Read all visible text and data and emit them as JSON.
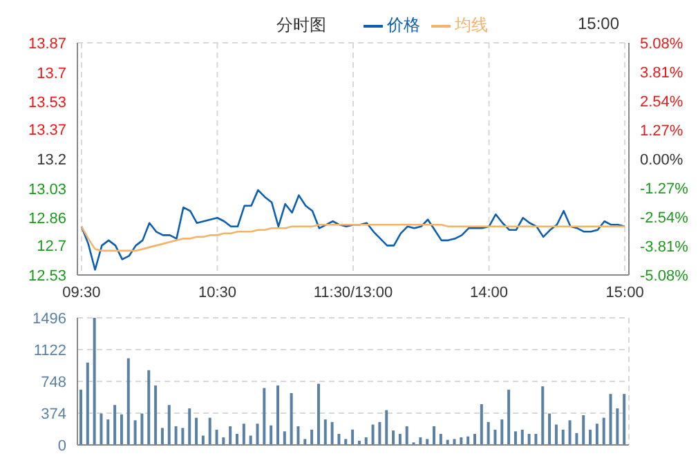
{
  "chart_data": [
    {
      "type": "line",
      "title": "分时图",
      "annotations": [
        "15:00"
      ],
      "legend": "top",
      "grid": true,
      "categories": [
        "09:30",
        null,
        null,
        null,
        null,
        null,
        null,
        null,
        null,
        null,
        null,
        null,
        null,
        null,
        null,
        null,
        null,
        null,
        null,
        null,
        "10:30",
        null,
        null,
        null,
        null,
        null,
        null,
        null,
        null,
        null,
        null,
        null,
        null,
        null,
        null,
        null,
        null,
        null,
        null,
        null,
        "11:30/13:00",
        null,
        null,
        null,
        null,
        null,
        null,
        null,
        null,
        null,
        null,
        null,
        null,
        null,
        null,
        null,
        null,
        null,
        null,
        null,
        "14:00",
        null,
        null,
        null,
        null,
        null,
        null,
        null,
        null,
        null,
        null,
        null,
        null,
        null,
        null,
        null,
        null,
        null,
        null,
        null,
        "15:00"
      ],
      "ylim": [
        12.53,
        13.87
      ],
      "yticks": [
        12.53,
        12.7,
        12.86,
        13.03,
        13.2,
        13.37,
        13.53,
        13.7,
        13.87
      ],
      "y2lim": [
        -5.08,
        5.08
      ],
      "y2ticks": [
        {
          "value": -5.08,
          "label": "-5.08%"
        },
        {
          "value": -3.81,
          "label": "-3.81%"
        },
        {
          "value": -2.54,
          "label": "-2.54%"
        },
        {
          "value": -1.27,
          "label": "-1.27%"
        },
        {
          "value": 0,
          "label": "0.00%"
        },
        {
          "value": 1.27,
          "label": "1.27%"
        },
        {
          "value": 2.54,
          "label": "2.54%"
        },
        {
          "value": 3.81,
          "label": "3.81%"
        },
        {
          "value": 5.08,
          "label": "5.08%"
        }
      ],
      "series": [
        {
          "name": "价格",
          "color": "#0c5fb0",
          "values": [
            12.81,
            12.71,
            12.56,
            12.7,
            12.73,
            12.7,
            12.62,
            12.64,
            12.7,
            12.73,
            12.83,
            12.78,
            12.76,
            12.76,
            12.74,
            12.92,
            12.9,
            12.83,
            12.84,
            12.85,
            12.86,
            12.84,
            12.81,
            12.81,
            12.93,
            12.93,
            13.02,
            12.98,
            12.95,
            12.81,
            12.94,
            12.89,
            12.99,
            12.93,
            12.9,
            12.8,
            12.82,
            12.84,
            12.82,
            12.81,
            12.82,
            12.82,
            12.83,
            12.78,
            12.74,
            12.7,
            12.7,
            12.77,
            12.81,
            12.8,
            12.81,
            12.85,
            12.79,
            12.73,
            12.73,
            12.74,
            12.76,
            12.8,
            12.8,
            12.8,
            12.81,
            12.88,
            12.83,
            12.79,
            12.79,
            12.86,
            12.83,
            12.81,
            12.75,
            12.79,
            12.82,
            12.9,
            12.81,
            12.8,
            12.78,
            12.78,
            12.79,
            12.84,
            12.82,
            12.82,
            12.81
          ]
        },
        {
          "name": "均线",
          "color": "#f4b36a",
          "values": [
            12.81,
            12.74,
            12.68,
            12.67,
            12.67,
            12.67,
            12.67,
            12.67,
            12.67,
            12.68,
            12.69,
            12.7,
            12.71,
            12.72,
            12.73,
            12.74,
            12.74,
            12.75,
            12.75,
            12.76,
            12.76,
            12.77,
            12.77,
            12.78,
            12.78,
            12.78,
            12.79,
            12.79,
            12.8,
            12.8,
            12.8,
            12.81,
            12.81,
            12.81,
            12.81,
            12.82,
            12.82,
            12.82,
            12.82,
            12.82,
            12.82,
            12.82,
            12.82,
            12.82,
            12.82,
            12.82,
            12.82,
            12.82,
            12.82,
            12.82,
            12.82,
            12.82,
            12.82,
            12.82,
            12.81,
            12.81,
            12.81,
            12.81,
            12.81,
            12.81,
            12.81,
            12.81,
            12.81,
            12.81,
            12.81,
            12.81,
            12.81,
            12.81,
            12.81,
            12.81,
            12.81,
            12.81,
            12.81,
            12.81,
            12.81,
            12.81,
            12.81,
            12.81,
            12.81,
            12.81,
            12.81
          ]
        }
      ]
    },
    {
      "type": "bar",
      "color": "#5b80a5",
      "grid": true,
      "tick_labels": "y",
      "categories": [
        null,
        null,
        null,
        null,
        null,
        null,
        null,
        null,
        null,
        null,
        null,
        null,
        null,
        null,
        null,
        null,
        null,
        null,
        null,
        null,
        null,
        null,
        null,
        null,
        null,
        null,
        null,
        null,
        null,
        null,
        null,
        null,
        null,
        null,
        null,
        null,
        null,
        null,
        null,
        null,
        null,
        null,
        null,
        null,
        null,
        null,
        null,
        null,
        null,
        null,
        null,
        null,
        null,
        null,
        null,
        null,
        null,
        null,
        null,
        null,
        null,
        null,
        null,
        null,
        null,
        null,
        null,
        null,
        null,
        null,
        null,
        null,
        null,
        null,
        null,
        null,
        null,
        null,
        null,
        null,
        null
      ],
      "ylim": [
        0,
        1496
      ],
      "yticks": [
        0,
        374,
        748,
        1122,
        1496
      ],
      "values": [
        650,
        970,
        1496,
        370,
        300,
        470,
        360,
        1020,
        290,
        370,
        880,
        700,
        200,
        470,
        220,
        200,
        430,
        320,
        110,
        320,
        180,
        90,
        220,
        130,
        250,
        110,
        250,
        670,
        230,
        700,
        160,
        610,
        220,
        70,
        180,
        720,
        300,
        270,
        130,
        70,
        180,
        50,
        90,
        240,
        270,
        410,
        170,
        130,
        220,
        30,
        90,
        70,
        220,
        130,
        60,
        70,
        90,
        100,
        130,
        480,
        270,
        180,
        300,
        650,
        160,
        180,
        130,
        130,
        690,
        370,
        240,
        180,
        290,
        140,
        350,
        180,
        250,
        320,
        600,
        430,
        600
      ]
    }
  ]
}
